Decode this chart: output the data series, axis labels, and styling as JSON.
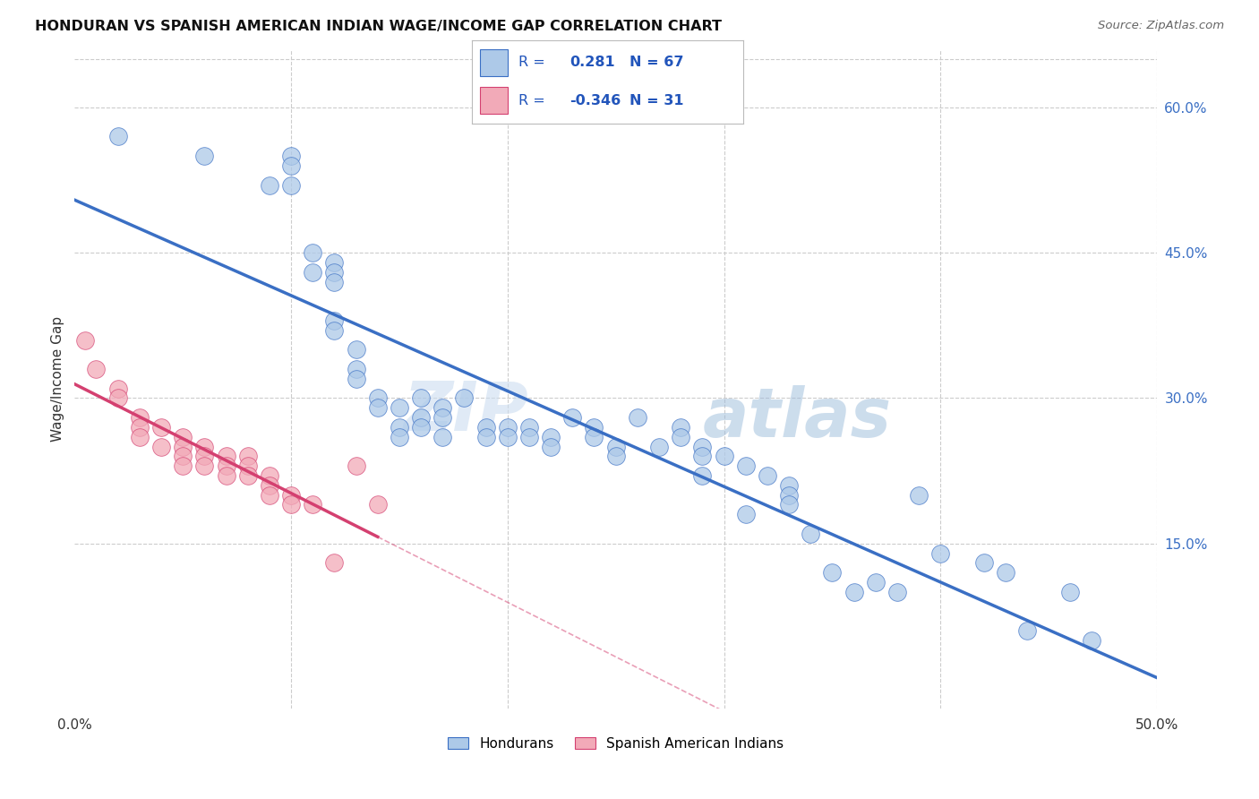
{
  "title": "HONDURAN VS SPANISH AMERICAN INDIAN WAGE/INCOME GAP CORRELATION CHART",
  "source": "Source: ZipAtlas.com",
  "ylabel": "Wage/Income Gap",
  "xlim": [
    0.0,
    0.5
  ],
  "ylim": [
    -0.02,
    0.66
  ],
  "ytick_labels_right": [
    "60.0%",
    "45.0%",
    "30.0%",
    "15.0%"
  ],
  "ytick_vals_right": [
    0.6,
    0.45,
    0.3,
    0.15
  ],
  "blue_R": 0.281,
  "blue_N": 67,
  "pink_R": -0.346,
  "pink_N": 31,
  "legend_label_blue": "Hondurans",
  "legend_label_pink": "Spanish American Indians",
  "blue_color": "#adc9e8",
  "pink_color": "#f2aab8",
  "blue_line_color": "#3a6fc4",
  "pink_line_color": "#d44070",
  "watermark_zip": "ZIP",
  "watermark_atlas": "atlas",
  "background_color": "#ffffff",
  "grid_color": "#cccccc",
  "blue_points_x": [
    0.02,
    0.06,
    0.09,
    0.1,
    0.1,
    0.1,
    0.11,
    0.11,
    0.12,
    0.12,
    0.12,
    0.12,
    0.12,
    0.13,
    0.13,
    0.13,
    0.14,
    0.14,
    0.15,
    0.15,
    0.15,
    0.16,
    0.16,
    0.16,
    0.17,
    0.17,
    0.17,
    0.18,
    0.19,
    0.19,
    0.2,
    0.2,
    0.21,
    0.21,
    0.22,
    0.22,
    0.23,
    0.24,
    0.24,
    0.25,
    0.25,
    0.26,
    0.27,
    0.28,
    0.28,
    0.29,
    0.29,
    0.29,
    0.3,
    0.31,
    0.31,
    0.32,
    0.33,
    0.33,
    0.33,
    0.34,
    0.35,
    0.36,
    0.37,
    0.38,
    0.39,
    0.4,
    0.42,
    0.43,
    0.44,
    0.46,
    0.47
  ],
  "blue_points_y": [
    0.57,
    0.55,
    0.52,
    0.55,
    0.54,
    0.52,
    0.45,
    0.43,
    0.44,
    0.43,
    0.42,
    0.38,
    0.37,
    0.35,
    0.33,
    0.32,
    0.3,
    0.29,
    0.29,
    0.27,
    0.26,
    0.3,
    0.28,
    0.27,
    0.29,
    0.28,
    0.26,
    0.3,
    0.27,
    0.26,
    0.27,
    0.26,
    0.27,
    0.26,
    0.26,
    0.25,
    0.28,
    0.27,
    0.26,
    0.25,
    0.24,
    0.28,
    0.25,
    0.27,
    0.26,
    0.25,
    0.24,
    0.22,
    0.24,
    0.23,
    0.18,
    0.22,
    0.21,
    0.2,
    0.19,
    0.16,
    0.12,
    0.1,
    0.11,
    0.1,
    0.2,
    0.14,
    0.13,
    0.12,
    0.06,
    0.1,
    0.05
  ],
  "pink_points_x": [
    0.005,
    0.01,
    0.02,
    0.02,
    0.03,
    0.03,
    0.03,
    0.04,
    0.04,
    0.05,
    0.05,
    0.05,
    0.05,
    0.06,
    0.06,
    0.06,
    0.07,
    0.07,
    0.07,
    0.08,
    0.08,
    0.08,
    0.09,
    0.09,
    0.09,
    0.1,
    0.1,
    0.11,
    0.12,
    0.13,
    0.14
  ],
  "pink_points_y": [
    0.36,
    0.33,
    0.31,
    0.3,
    0.28,
    0.27,
    0.26,
    0.27,
    0.25,
    0.26,
    0.25,
    0.24,
    0.23,
    0.25,
    0.24,
    0.23,
    0.24,
    0.23,
    0.22,
    0.24,
    0.23,
    0.22,
    0.22,
    0.21,
    0.2,
    0.2,
    0.19,
    0.19,
    0.13,
    0.23,
    0.19
  ]
}
